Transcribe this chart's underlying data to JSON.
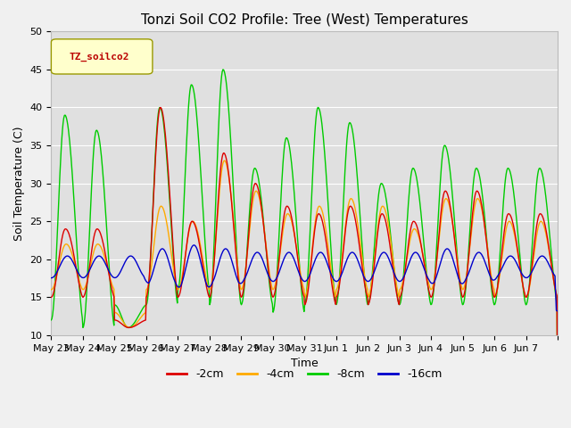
{
  "title": "Tonzi Soil CO2 Profile: Tree (West) Temperatures",
  "xlabel": "Time",
  "ylabel": "Soil Temperature (C)",
  "ylim": [
    10,
    50
  ],
  "xlim_days": 16,
  "x_tick_labels": [
    "May 23",
    "May 24",
    "May 25",
    "May 26",
    "May 27",
    "May 28",
    "May 29",
    "May 30",
    "May 31",
    "Jun 1",
    "Jun 2",
    "Jun 3",
    "Jun 4",
    "Jun 5",
    "Jun 6",
    "Jun 7"
  ],
  "legend_label": "TZ_soilco2",
  "series_labels": [
    "-2cm",
    "-4cm",
    "-8cm",
    "-16cm"
  ],
  "series_colors": [
    "#dd0000",
    "#ffaa00",
    "#00cc00",
    "#0000cc"
  ],
  "background_color": "#f0f0f0",
  "plot_bg_color": "#e0e0e0",
  "title_fontsize": 11,
  "axis_fontsize": 9,
  "tick_fontsize": 8,
  "legend_fontsize": 9,
  "linewidth": 1.0,
  "n_points_per_day": 48,
  "peak_2cm": [
    24,
    24,
    11,
    40,
    25,
    34,
    30,
    27,
    26,
    27,
    26,
    25,
    29,
    29,
    26,
    26
  ],
  "base_2cm": [
    15,
    15,
    12,
    15,
    15,
    15,
    15,
    15,
    14,
    15,
    14,
    15,
    15,
    15,
    15,
    15
  ],
  "peak_4cm": [
    22,
    22,
    11,
    27,
    25,
    33,
    29,
    26,
    27,
    28,
    27,
    24,
    28,
    28,
    25,
    25
  ],
  "base_4cm": [
    16,
    16,
    13,
    16,
    16,
    16,
    16,
    16,
    15,
    16,
    15,
    16,
    16,
    16,
    15,
    15
  ],
  "peak_8cm": [
    39,
    37,
    11,
    40,
    43,
    45,
    32,
    36,
    40,
    38,
    30,
    32,
    35,
    32,
    32,
    32
  ],
  "base_8cm": [
    12,
    11,
    14,
    14,
    16,
    14,
    14,
    13,
    14,
    14,
    14,
    14,
    14,
    14,
    14,
    14
  ],
  "base_16cm": 19.0,
  "amp_16cm": [
    1.5,
    1.5,
    1.5,
    2.5,
    3.0,
    2.5,
    2.0,
    2.0,
    2.0,
    2.0,
    2.0,
    2.0,
    2.5,
    2.0,
    1.5,
    1.5
  ],
  "peak_phase": 0.45,
  "trough_phase": 0.9
}
